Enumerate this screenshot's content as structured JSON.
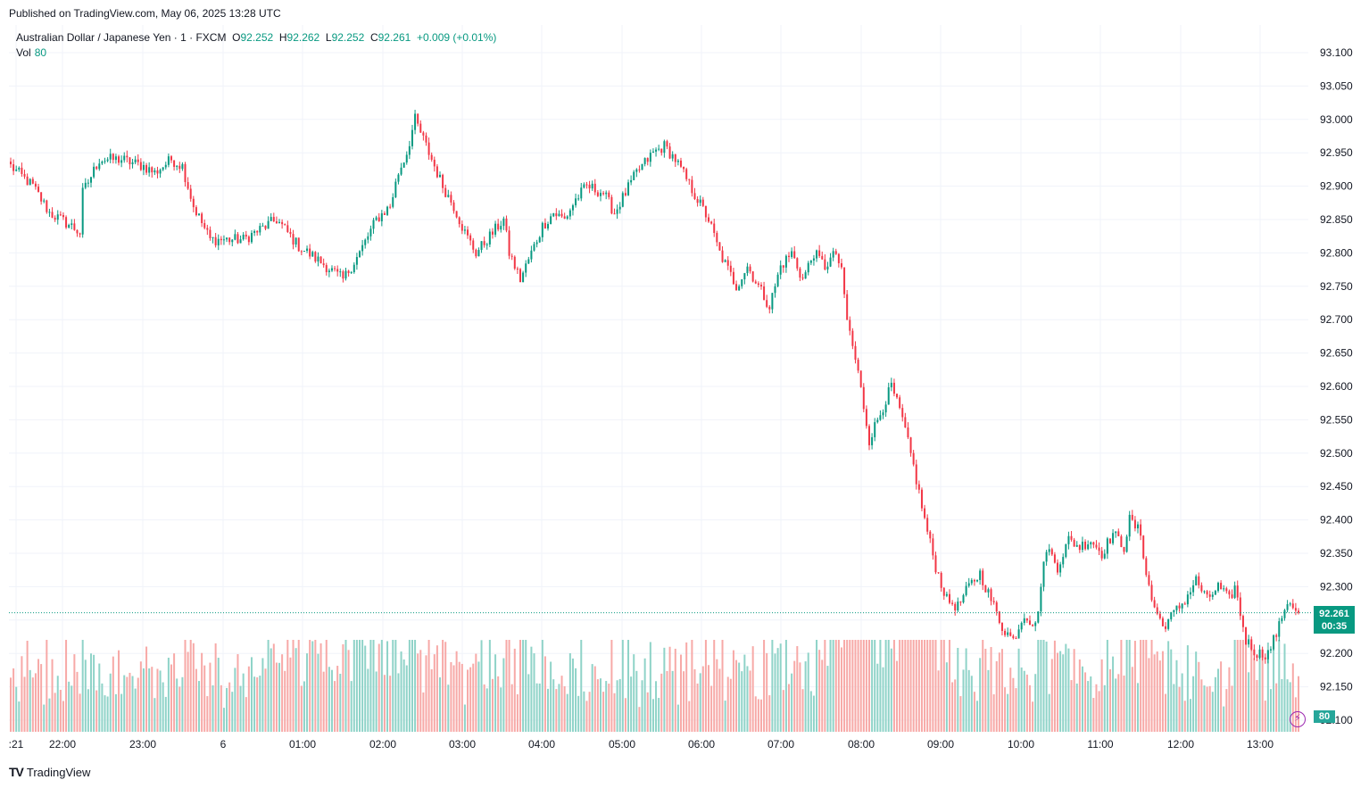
{
  "header": {
    "published": "Published on TradingView.com, May 06, 2025 13:28 UTC"
  },
  "legend": {
    "symbol": "Australian Dollar / Japanese Yen · 1 · FXCM",
    "o_label": "O",
    "o_value": "92.252",
    "h_label": "H",
    "h_value": "92.262",
    "l_label": "L",
    "l_value": "92.252",
    "c_label": "C",
    "c_value": "92.261",
    "change": "+0.009 (+0.01%)",
    "vol_label": "Vol",
    "vol_value": "80"
  },
  "badges": {
    "price": "92.261",
    "countdown": "00:35",
    "volume": "80"
  },
  "footer": {
    "brand": "TradingView"
  },
  "colors": {
    "up": "#089981",
    "down": "#f23645",
    "vol_up": "#8fd3c8",
    "vol_down": "#f7a9a7",
    "grid": "#f0f3fa"
  },
  "chart_data": {
    "type": "candlestick",
    "y_ticks": [
      "93.100",
      "93.050",
      "93.000",
      "92.950",
      "92.900",
      "92.850",
      "92.800",
      "92.750",
      "92.700",
      "92.650",
      "92.600",
      "92.550",
      "92.500",
      "92.450",
      "92.400",
      "92.350",
      "92.300",
      "92.250",
      "92.200",
      "92.150",
      "92.100"
    ],
    "x_ticks": [
      ":21",
      "22:00",
      "23:00",
      "6",
      "01:00",
      "02:00",
      "03:00",
      "04:00",
      "05:00",
      "06:00",
      "07:00",
      "08:00",
      "09:00",
      "10:00",
      "11:00",
      "12:00",
      "13:00"
    ],
    "last_price": 92.261,
    "path": [
      [
        0,
        92.93
      ],
      [
        8,
        92.9
      ],
      [
        14,
        92.86
      ],
      [
        22,
        92.84
      ],
      [
        25,
        92.83
      ],
      [
        26,
        92.89
      ],
      [
        32,
        92.94
      ],
      [
        40,
        92.94
      ],
      [
        48,
        92.93
      ],
      [
        52,
        92.92
      ],
      [
        58,
        92.94
      ],
      [
        62,
        92.93
      ],
      [
        66,
        92.87
      ],
      [
        72,
        92.82
      ],
      [
        84,
        92.82
      ],
      [
        96,
        92.85
      ],
      [
        104,
        92.81
      ],
      [
        114,
        92.78
      ],
      [
        120,
        92.76
      ],
      [
        126,
        92.8
      ],
      [
        132,
        92.85
      ],
      [
        137,
        92.87
      ],
      [
        140,
        92.92
      ],
      [
        143,
        92.95
      ],
      [
        146,
        93.0
      ],
      [
        150,
        92.96
      ],
      [
        156,
        92.9
      ],
      [
        160,
        92.87
      ],
      [
        164,
        92.83
      ],
      [
        168,
        92.8
      ],
      [
        174,
        92.83
      ],
      [
        178,
        92.85
      ],
      [
        180,
        92.8
      ],
      [
        184,
        92.76
      ],
      [
        188,
        92.8
      ],
      [
        192,
        92.84
      ],
      [
        196,
        92.86
      ],
      [
        200,
        92.85
      ],
      [
        204,
        92.88
      ],
      [
        208,
        92.9
      ],
      [
        214,
        92.89
      ],
      [
        218,
        92.86
      ],
      [
        222,
        92.89
      ],
      [
        226,
        92.92
      ],
      [
        232,
        92.95
      ],
      [
        236,
        92.96
      ],
      [
        240,
        92.94
      ],
      [
        244,
        92.91
      ],
      [
        248,
        92.88
      ],
      [
        252,
        92.85
      ],
      [
        256,
        92.8
      ],
      [
        262,
        92.75
      ],
      [
        266,
        92.78
      ],
      [
        270,
        92.75
      ],
      [
        274,
        92.72
      ],
      [
        278,
        92.78
      ],
      [
        282,
        92.8
      ],
      [
        286,
        92.76
      ],
      [
        290,
        92.8
      ],
      [
        294,
        92.78
      ],
      [
        298,
        92.8
      ],
      [
        300,
        92.77
      ],
      [
        302,
        92.7
      ],
      [
        306,
        92.62
      ],
      [
        310,
        92.52
      ],
      [
        314,
        92.56
      ],
      [
        318,
        92.6
      ],
      [
        322,
        92.55
      ],
      [
        326,
        92.48
      ],
      [
        330,
        92.4
      ],
      [
        334,
        92.33
      ],
      [
        338,
        92.28
      ],
      [
        342,
        92.27
      ],
      [
        346,
        92.3
      ],
      [
        350,
        92.32
      ],
      [
        354,
        92.28
      ],
      [
        358,
        92.24
      ],
      [
        362,
        92.22
      ],
      [
        366,
        92.26
      ],
      [
        370,
        92.24
      ],
      [
        372,
        92.3
      ],
      [
        374,
        92.36
      ],
      [
        378,
        92.33
      ],
      [
        382,
        92.37
      ],
      [
        386,
        92.36
      ],
      [
        390,
        92.37
      ],
      [
        394,
        92.35
      ],
      [
        398,
        92.38
      ],
      [
        402,
        92.36
      ],
      [
        404,
        92.4
      ],
      [
        408,
        92.38
      ],
      [
        410,
        92.32
      ],
      [
        412,
        92.28
      ],
      [
        416,
        92.24
      ],
      [
        420,
        92.26
      ],
      [
        424,
        92.28
      ],
      [
        428,
        92.31
      ],
      [
        432,
        92.28
      ],
      [
        436,
        92.3
      ],
      [
        440,
        92.28
      ],
      [
        442,
        92.3
      ],
      [
        444,
        92.26
      ],
      [
        446,
        92.22
      ],
      [
        450,
        92.2
      ],
      [
        454,
        92.2
      ],
      [
        458,
        92.24
      ],
      [
        460,
        92.27
      ],
      [
        462,
        92.28
      ],
      [
        464,
        92.26
      ]
    ]
  }
}
